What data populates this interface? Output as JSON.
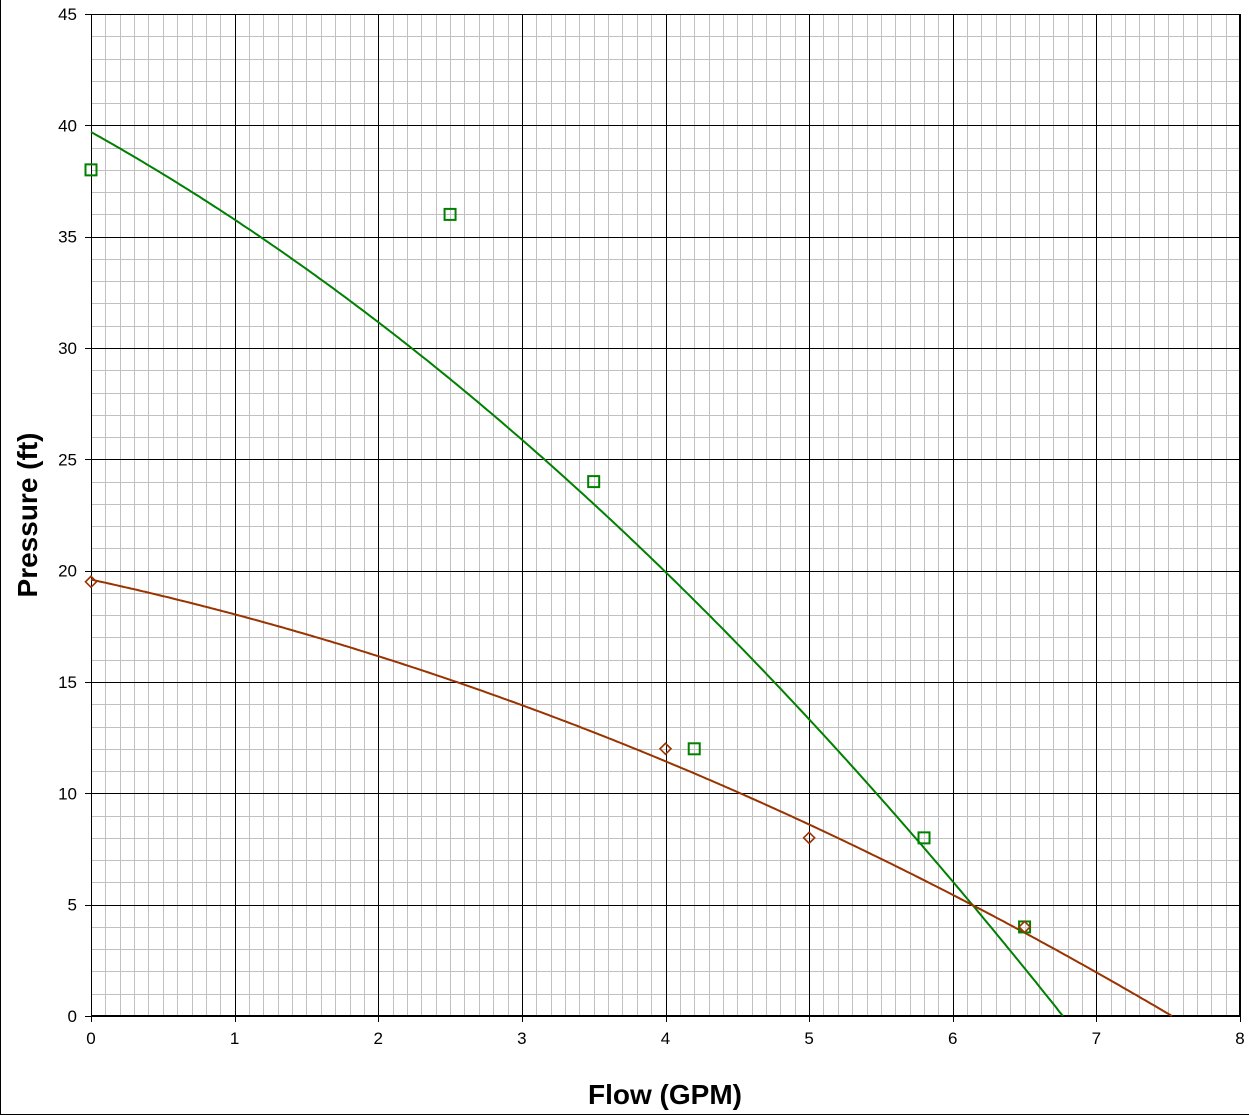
{
  "chart_data": {
    "type": "scatter",
    "title": "",
    "xlabel": "Flow (GPM)",
    "ylabel": "Pressure (ft)",
    "xlim": [
      0,
      8
    ],
    "ylim": [
      0,
      45
    ],
    "x_ticks": [
      "0",
      "1",
      "2",
      "3",
      "4",
      "5",
      "6",
      "7",
      "8"
    ],
    "y_ticks": [
      "0",
      "5",
      "10",
      "15",
      "20",
      "25",
      "30",
      "35",
      "40",
      "45"
    ],
    "grid": "major and minor",
    "legend": "none",
    "series": [
      {
        "marker": "square",
        "color": "#008000",
        "points": [
          [
            0,
            38
          ],
          [
            2.5,
            36
          ],
          [
            3.5,
            24
          ],
          [
            4.2,
            12
          ],
          [
            5.8,
            8
          ],
          [
            6.5,
            4
          ]
        ],
        "trendline": {
          "kind": "polynomial-2",
          "coefficients": [
            39.7,
            -3.6,
            -0.335
          ]
        }
      },
      {
        "marker": "diamond",
        "color": "#993300",
        "points": [
          [
            0,
            19.5
          ],
          [
            4,
            12
          ],
          [
            5,
            8
          ],
          [
            6.5,
            4
          ]
        ],
        "trendline": {
          "kind": "polynomial-2",
          "coefficients": [
            19.6,
            -1.4,
            -0.16
          ]
        }
      }
    ]
  }
}
